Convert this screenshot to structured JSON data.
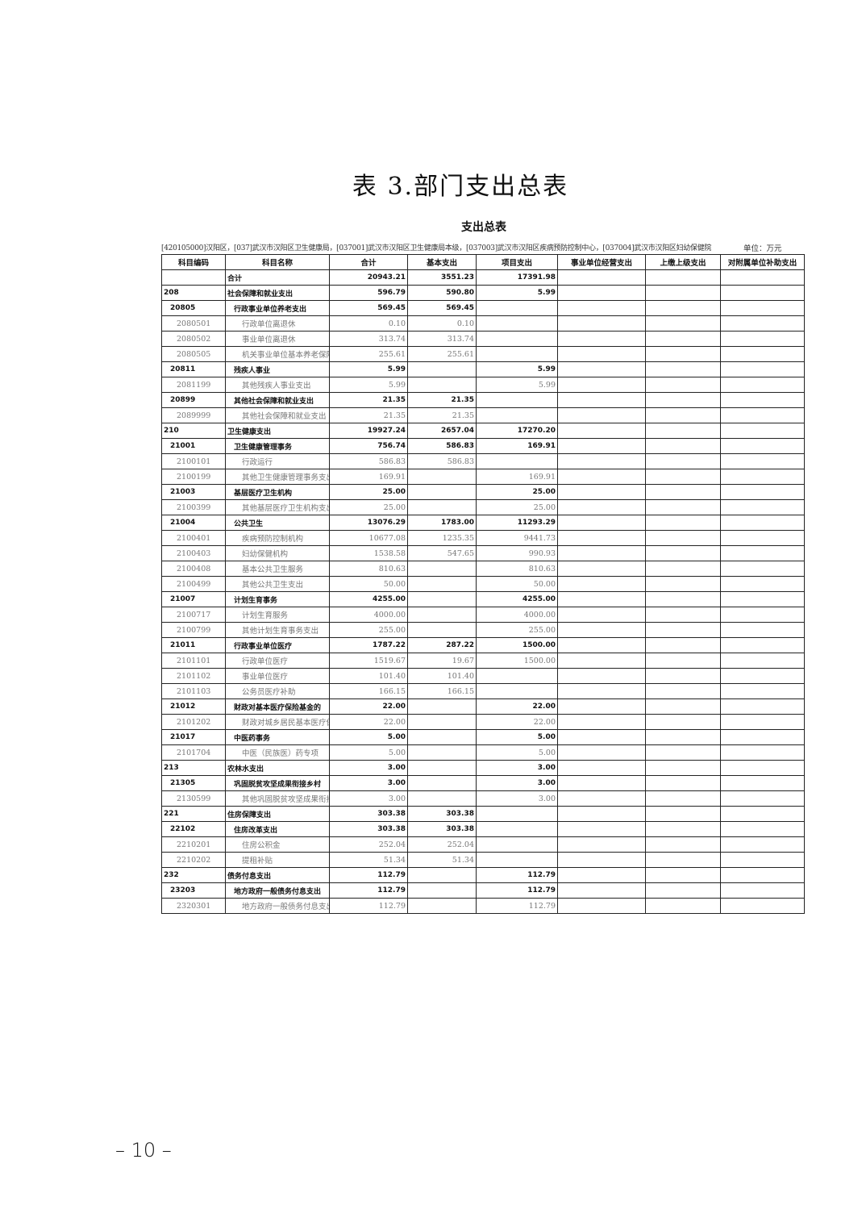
{
  "title": "表 3.部门支出总表",
  "subtitle": "支出总表",
  "info": "[420105000]汉阳区，[037]武汉市汉阳区卫生健康局，[037001]武汉市汉阳区卫生健康局本级，[037003]武汉市汉阳区疾病预防控制中心，[037004]武汉市汉阳区妇幼保健院",
  "unit": "单位：万元",
  "columns": [
    "科目编码",
    "科目名称",
    "合计",
    "基本支出",
    "项目支出",
    "事业单位经营支出",
    "上缴上级支出",
    "对附属单位补助支出"
  ],
  "rows": [
    {
      "level": "tot",
      "code": "",
      "name": "合计",
      "total": "20943.21",
      "basic": "3551.23",
      "project": "17391.98"
    },
    {
      "level": "l0",
      "code": "208",
      "name": "社会保障和就业支出",
      "total": "596.79",
      "basic": "590.80",
      "project": "5.99"
    },
    {
      "level": "l1",
      "code": "20805",
      "name": "行政事业单位养老支出",
      "total": "569.45",
      "basic": "569.45",
      "project": ""
    },
    {
      "level": "l2",
      "code": "2080501",
      "name": "行政单位离退休",
      "total": "0.10",
      "basic": "0.10",
      "project": ""
    },
    {
      "level": "l2",
      "code": "2080502",
      "name": "事业单位离退休",
      "total": "313.74",
      "basic": "313.74",
      "project": ""
    },
    {
      "level": "l2",
      "code": "2080505",
      "name": "机关事业单位基本养老保险",
      "total": "255.61",
      "basic": "255.61",
      "project": ""
    },
    {
      "level": "l1",
      "code": "20811",
      "name": "残疾人事业",
      "total": "5.99",
      "basic": "",
      "project": "5.99"
    },
    {
      "level": "l2",
      "code": "2081199",
      "name": "其他残疾人事业支出",
      "total": "5.99",
      "basic": "",
      "project": "5.99"
    },
    {
      "level": "l1",
      "code": "20899",
      "name": "其他社会保障和就业支出",
      "total": "21.35",
      "basic": "21.35",
      "project": ""
    },
    {
      "level": "l2",
      "code": "2089999",
      "name": "其他社会保障和就业支出",
      "total": "21.35",
      "basic": "21.35",
      "project": ""
    },
    {
      "level": "l0",
      "code": "210",
      "name": "卫生健康支出",
      "total": "19927.24",
      "basic": "2657.04",
      "project": "17270.20"
    },
    {
      "level": "l1",
      "code": "21001",
      "name": "卫生健康管理事务",
      "total": "756.74",
      "basic": "586.83",
      "project": "169.91"
    },
    {
      "level": "l2",
      "code": "2100101",
      "name": "行政运行",
      "total": "586.83",
      "basic": "586.83",
      "project": ""
    },
    {
      "level": "l2",
      "code": "2100199",
      "name": "其他卫生健康管理事务支出",
      "total": "169.91",
      "basic": "",
      "project": "169.91"
    },
    {
      "level": "l1",
      "code": "21003",
      "name": "基层医疗卫生机构",
      "total": "25.00",
      "basic": "",
      "project": "25.00"
    },
    {
      "level": "l2",
      "code": "2100399",
      "name": "其他基层医疗卫生机构支出",
      "total": "25.00",
      "basic": "",
      "project": "25.00"
    },
    {
      "level": "l1",
      "code": "21004",
      "name": "公共卫生",
      "total": "13076.29",
      "basic": "1783.00",
      "project": "11293.29"
    },
    {
      "level": "l2",
      "code": "2100401",
      "name": "疾病预防控制机构",
      "total": "10677.08",
      "basic": "1235.35",
      "project": "9441.73"
    },
    {
      "level": "l2",
      "code": "2100403",
      "name": "妇幼保健机构",
      "total": "1538.58",
      "basic": "547.65",
      "project": "990.93"
    },
    {
      "level": "l2",
      "code": "2100408",
      "name": "基本公共卫生服务",
      "total": "810.63",
      "basic": "",
      "project": "810.63"
    },
    {
      "level": "l2",
      "code": "2100499",
      "name": "其他公共卫生支出",
      "total": "50.00",
      "basic": "",
      "project": "50.00"
    },
    {
      "level": "l1",
      "code": "21007",
      "name": "计划生育事务",
      "total": "4255.00",
      "basic": "",
      "project": "4255.00"
    },
    {
      "level": "l2",
      "code": "2100717",
      "name": "计划生育服务",
      "total": "4000.00",
      "basic": "",
      "project": "4000.00"
    },
    {
      "level": "l2",
      "code": "2100799",
      "name": "其他计划生育事务支出",
      "total": "255.00",
      "basic": "",
      "project": "255.00"
    },
    {
      "level": "l1",
      "code": "21011",
      "name": "行政事业单位医疗",
      "total": "1787.22",
      "basic": "287.22",
      "project": "1500.00"
    },
    {
      "level": "l2",
      "code": "2101101",
      "name": "行政单位医疗",
      "total": "1519.67",
      "basic": "19.67",
      "project": "1500.00"
    },
    {
      "level": "l2",
      "code": "2101102",
      "name": "事业单位医疗",
      "total": "101.40",
      "basic": "101.40",
      "project": ""
    },
    {
      "level": "l2",
      "code": "2101103",
      "name": "公务员医疗补助",
      "total": "166.15",
      "basic": "166.15",
      "project": ""
    },
    {
      "level": "l1",
      "code": "21012",
      "name": "财政对基本医疗保险基金的",
      "total": "22.00",
      "basic": "",
      "project": "22.00"
    },
    {
      "level": "l2",
      "code": "2101202",
      "name": "财政对城乡居民基本医疗保",
      "total": "22.00",
      "basic": "",
      "project": "22.00"
    },
    {
      "level": "l1",
      "code": "21017",
      "name": "中医药事务",
      "total": "5.00",
      "basic": "",
      "project": "5.00"
    },
    {
      "level": "l2",
      "code": "2101704",
      "name": "中医（民族医）药专项",
      "total": "5.00",
      "basic": "",
      "project": "5.00"
    },
    {
      "level": "l0",
      "code": "213",
      "name": "农林水支出",
      "total": "3.00",
      "basic": "",
      "project": "3.00"
    },
    {
      "level": "l1",
      "code": "21305",
      "name": "巩固脱贫攻坚成果衔接乡村",
      "total": "3.00",
      "basic": "",
      "project": "3.00"
    },
    {
      "level": "l2",
      "code": "2130599",
      "name": "其他巩固脱贫攻坚成果衔接",
      "total": "3.00",
      "basic": "",
      "project": "3.00"
    },
    {
      "level": "l0",
      "code": "221",
      "name": "住房保障支出",
      "total": "303.38",
      "basic": "303.38",
      "project": ""
    },
    {
      "level": "l1",
      "code": "22102",
      "name": "住房改革支出",
      "total": "303.38",
      "basic": "303.38",
      "project": ""
    },
    {
      "level": "l2",
      "code": "2210201",
      "name": "住房公积金",
      "total": "252.04",
      "basic": "252.04",
      "project": ""
    },
    {
      "level": "l2",
      "code": "2210202",
      "name": "提租补贴",
      "total": "51.34",
      "basic": "51.34",
      "project": ""
    },
    {
      "level": "l0",
      "code": "232",
      "name": "债务付息支出",
      "total": "112.79",
      "basic": "",
      "project": "112.79"
    },
    {
      "level": "l1",
      "code": "23203",
      "name": "地方政府一般债务付息支出",
      "total": "112.79",
      "basic": "",
      "project": "112.79"
    },
    {
      "level": "l2",
      "code": "2320301",
      "name": "地方政府一般债务付息支出",
      "total": "112.79",
      "basic": "",
      "project": "112.79"
    }
  ],
  "page_number": "– 10 –"
}
